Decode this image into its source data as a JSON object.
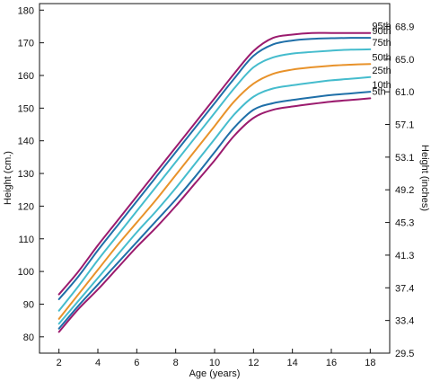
{
  "chart_data": {
    "type": "line",
    "xlabel": "Age (years)",
    "ylabel_left": "Height (cm.)",
    "ylabel_right": "Height (inches)",
    "xlim": [
      1,
      19
    ],
    "ylim": [
      75,
      182
    ],
    "x_ticks": [
      2,
      4,
      6,
      8,
      10,
      12,
      14,
      16,
      18
    ],
    "y_ticks_left": [
      80,
      90,
      100,
      110,
      120,
      130,
      140,
      150,
      160,
      170,
      180
    ],
    "y_ticks_right": [
      {
        "label": "29.5",
        "value": 75
      },
      {
        "label": "33.4",
        "value": 85
      },
      {
        "label": "37.4",
        "value": 95
      },
      {
        "label": "41.3",
        "value": 105
      },
      {
        "label": "45.3",
        "value": 115
      },
      {
        "label": "49.2",
        "value": 125
      },
      {
        "label": "53.1",
        "value": 135
      },
      {
        "label": "57.1",
        "value": 145
      },
      {
        "label": "61.0",
        "value": 155
      },
      {
        "label": "65.0",
        "value": 165
      },
      {
        "label": "68.9",
        "value": 175
      }
    ],
    "grid": false,
    "x": [
      2,
      3,
      4,
      5,
      6,
      7,
      8,
      9,
      10,
      11,
      12,
      13,
      14,
      15,
      16,
      17,
      18
    ],
    "series": [
      {
        "name": "95th",
        "color": "#9b1b6e",
        "values": [
          93,
          100,
          108,
          115.5,
          123,
          130.5,
          138,
          145.5,
          153,
          160.5,
          167.5,
          171.5,
          172.5,
          173,
          173,
          173,
          173
        ]
      },
      {
        "name": "90th",
        "color": "#1f6fa8",
        "values": [
          91.5,
          98.5,
          106.5,
          114,
          121.5,
          129,
          136.5,
          144,
          151.5,
          159,
          166,
          169.5,
          170.7,
          171.2,
          171.4,
          171.5,
          171.5
        ]
      },
      {
        "name": "75th",
        "color": "#45bccd",
        "values": [
          88,
          95.5,
          103.5,
          111,
          118.5,
          126,
          133.5,
          141,
          148.5,
          156,
          162.5,
          165.5,
          166.7,
          167.2,
          167.6,
          167.9,
          168
        ]
      },
      {
        "name": "50th",
        "color": "#e8922a",
        "values": [
          85.5,
          93,
          100.5,
          108,
          115,
          122,
          129.5,
          137,
          144.5,
          152,
          157.5,
          160.5,
          161.8,
          162.5,
          163,
          163.3,
          163.5
        ]
      },
      {
        "name": "25th",
        "color": "#45bccd",
        "values": [
          84,
          91,
          98,
          105,
          112,
          118.5,
          125.5,
          133,
          140.5,
          148,
          153.5,
          156,
          157,
          157.8,
          158.5,
          159,
          159.5
        ]
      },
      {
        "name": "10th",
        "color": "#1f6fa8",
        "values": [
          82.5,
          89.5,
          96,
          102.5,
          109,
          115.5,
          122,
          129,
          136.5,
          144,
          149.5,
          151.5,
          152.5,
          153.3,
          154,
          154.5,
          155
        ]
      },
      {
        "name": "5th",
        "color": "#9b1b6e",
        "values": [
          81.5,
          88.5,
          94.5,
          101,
          107.5,
          113.5,
          120,
          127,
          134,
          141.5,
          147,
          149.5,
          150.5,
          151.3,
          152,
          152.5,
          153
        ]
      }
    ]
  }
}
